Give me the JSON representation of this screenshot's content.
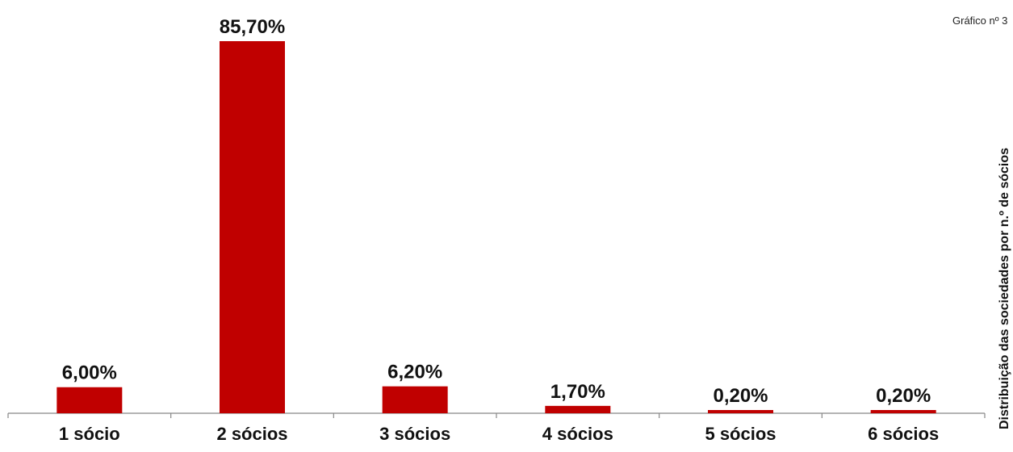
{
  "chart_number": "Gráfico nº 3",
  "side_title": "Distribuição das sociedades por n.º de sócios",
  "colors": {
    "bar": "#c00000",
    "axis": "#888888",
    "text": "#111111"
  },
  "chart_data": {
    "type": "bar",
    "title": "Distribuição das sociedades por n.º de sócios",
    "categories": [
      "1 sócio",
      "2 sócios",
      "3 sócios",
      "4 sócios",
      "5 sócios",
      "6 sócios"
    ],
    "values": [
      6.0,
      85.7,
      6.2,
      1.7,
      0.2,
      0.2
    ],
    "data_labels": [
      "6,00%",
      "85,70%",
      "6,20%",
      "1,70%",
      "0,20%",
      "0,20%"
    ],
    "xlabel": "",
    "ylabel": "",
    "ylim": [
      0,
      100
    ],
    "grid": false,
    "legend": "none"
  }
}
